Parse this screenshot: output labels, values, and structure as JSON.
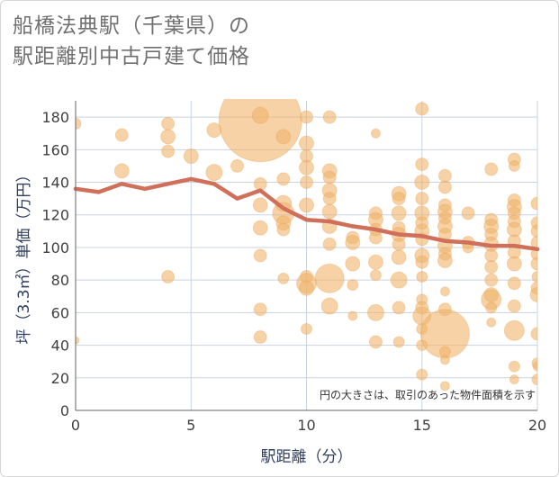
{
  "chart_data": {
    "type": "scatter",
    "title_lines": [
      "船橋法典駅（千葉県）の",
      "駅距離別中古戸建て価格"
    ],
    "xlabel": "駅距離（分）",
    "ylabel": "坪（3.3㎡）単価（万円）",
    "xlim": [
      0,
      20
    ],
    "ylim": [
      0,
      190
    ],
    "xticks": [
      0,
      5,
      10,
      15,
      20
    ],
    "yticks": [
      0,
      20,
      40,
      60,
      80,
      100,
      120,
      140,
      160,
      180
    ],
    "grid": true,
    "note": "円の大きさは、取引のあった物件面積を示す",
    "colors": {
      "bubble": "#f0b46a",
      "line": "#d0705a",
      "grid": "#c9d3e2",
      "axis": "#666666"
    },
    "trend_line": {
      "x": [
        0,
        1,
        2,
        3,
        4,
        5,
        6,
        7,
        8,
        9,
        10,
        11,
        12,
        13,
        14,
        15,
        16,
        17,
        18,
        19,
        20
      ],
      "y": [
        136,
        134,
        139,
        136,
        139,
        142,
        139,
        130,
        135,
        124,
        117,
        116,
        113,
        111,
        108,
        107,
        104,
        103,
        101,
        101,
        99
      ]
    },
    "bubbles": [
      {
        "x": 0,
        "y": 176,
        "s": 6
      },
      {
        "x": 0,
        "y": 43,
        "s": 4
      },
      {
        "x": 2,
        "y": 169,
        "s": 7
      },
      {
        "x": 2,
        "y": 147,
        "s": 8
      },
      {
        "x": 4,
        "y": 176,
        "s": 7
      },
      {
        "x": 4,
        "y": 168,
        "s": 8
      },
      {
        "x": 4,
        "y": 159,
        "s": 7
      },
      {
        "x": 4,
        "y": 82,
        "s": 7
      },
      {
        "x": 5,
        "y": 156,
        "s": 8
      },
      {
        "x": 6,
        "y": 172,
        "s": 8
      },
      {
        "x": 6,
        "y": 146,
        "s": 9
      },
      {
        "x": 7,
        "y": 150,
        "s": 7
      },
      {
        "x": 8,
        "y": 178,
        "s": 46
      },
      {
        "x": 8,
        "y": 181,
        "s": 9
      },
      {
        "x": 8,
        "y": 139,
        "s": 7
      },
      {
        "x": 8,
        "y": 126,
        "s": 8
      },
      {
        "x": 8,
        "y": 112,
        "s": 8
      },
      {
        "x": 8,
        "y": 95,
        "s": 7
      },
      {
        "x": 8,
        "y": 62,
        "s": 7
      },
      {
        "x": 8,
        "y": 45,
        "s": 7
      },
      {
        "x": 9,
        "y": 168,
        "s": 8
      },
      {
        "x": 9,
        "y": 142,
        "s": 7
      },
      {
        "x": 9,
        "y": 127,
        "s": 9
      },
      {
        "x": 9,
        "y": 121,
        "s": 12
      },
      {
        "x": 9,
        "y": 115,
        "s": 8
      },
      {
        "x": 9,
        "y": 111,
        "s": 7
      },
      {
        "x": 9,
        "y": 81,
        "s": 6
      },
      {
        "x": 10,
        "y": 180,
        "s": 7
      },
      {
        "x": 10,
        "y": 164,
        "s": 8
      },
      {
        "x": 10,
        "y": 156,
        "s": 7
      },
      {
        "x": 10,
        "y": 149,
        "s": 8
      },
      {
        "x": 10,
        "y": 140,
        "s": 7
      },
      {
        "x": 10,
        "y": 126,
        "s": 8
      },
      {
        "x": 10,
        "y": 82,
        "s": 7
      },
      {
        "x": 10,
        "y": 78,
        "s": 11
      },
      {
        "x": 10,
        "y": 75,
        "s": 8
      },
      {
        "x": 10,
        "y": 50,
        "s": 6
      },
      {
        "x": 11,
        "y": 180,
        "s": 7
      },
      {
        "x": 11,
        "y": 147,
        "s": 8
      },
      {
        "x": 11,
        "y": 143,
        "s": 7
      },
      {
        "x": 11,
        "y": 135,
        "s": 8
      },
      {
        "x": 11,
        "y": 130,
        "s": 7
      },
      {
        "x": 11,
        "y": 122,
        "s": 8
      },
      {
        "x": 11,
        "y": 113,
        "s": 8
      },
      {
        "x": 11,
        "y": 102,
        "s": 7
      },
      {
        "x": 11,
        "y": 81,
        "s": 16
      },
      {
        "x": 11,
        "y": 64,
        "s": 9
      },
      {
        "x": 12,
        "y": 106,
        "s": 7
      },
      {
        "x": 12,
        "y": 103,
        "s": 8
      },
      {
        "x": 12,
        "y": 90,
        "s": 8
      },
      {
        "x": 12,
        "y": 77,
        "s": 6
      },
      {
        "x": 12,
        "y": 58,
        "s": 5
      },
      {
        "x": 13,
        "y": 170,
        "s": 5
      },
      {
        "x": 13,
        "y": 121,
        "s": 7
      },
      {
        "x": 13,
        "y": 117,
        "s": 8
      },
      {
        "x": 13,
        "y": 111,
        "s": 7
      },
      {
        "x": 13,
        "y": 106,
        "s": 7
      },
      {
        "x": 13,
        "y": 91,
        "s": 8
      },
      {
        "x": 13,
        "y": 83,
        "s": 6
      },
      {
        "x": 13,
        "y": 60,
        "s": 9
      },
      {
        "x": 13,
        "y": 42,
        "s": 7
      },
      {
        "x": 14,
        "y": 133,
        "s": 8
      },
      {
        "x": 14,
        "y": 130,
        "s": 7
      },
      {
        "x": 14,
        "y": 121,
        "s": 8
      },
      {
        "x": 14,
        "y": 112,
        "s": 7
      },
      {
        "x": 14,
        "y": 108,
        "s": 8
      },
      {
        "x": 14,
        "y": 102,
        "s": 7
      },
      {
        "x": 14,
        "y": 94,
        "s": 8
      },
      {
        "x": 14,
        "y": 80,
        "s": 9
      },
      {
        "x": 14,
        "y": 63,
        "s": 7
      },
      {
        "x": 14,
        "y": 42,
        "s": 6
      },
      {
        "x": 15,
        "y": 185,
        "s": 7
      },
      {
        "x": 15,
        "y": 151,
        "s": 7
      },
      {
        "x": 15,
        "y": 140,
        "s": 8
      },
      {
        "x": 15,
        "y": 130,
        "s": 7
      },
      {
        "x": 15,
        "y": 121,
        "s": 8
      },
      {
        "x": 15,
        "y": 115,
        "s": 7
      },
      {
        "x": 15,
        "y": 110,
        "s": 8
      },
      {
        "x": 15,
        "y": 105,
        "s": 7
      },
      {
        "x": 15,
        "y": 95,
        "s": 8
      },
      {
        "x": 15,
        "y": 91,
        "s": 7
      },
      {
        "x": 15,
        "y": 82,
        "s": 6
      },
      {
        "x": 15,
        "y": 68,
        "s": 6
      },
      {
        "x": 15,
        "y": 63,
        "s": 7
      },
      {
        "x": 15,
        "y": 58,
        "s": 10
      },
      {
        "x": 15,
        "y": 50,
        "s": 6
      },
      {
        "x": 15,
        "y": 40,
        "s": 6
      },
      {
        "x": 15,
        "y": 22,
        "s": 6
      },
      {
        "x": 16,
        "y": 144,
        "s": 7
      },
      {
        "x": 16,
        "y": 137,
        "s": 7
      },
      {
        "x": 16,
        "y": 126,
        "s": 7
      },
      {
        "x": 16,
        "y": 122,
        "s": 8
      },
      {
        "x": 16,
        "y": 118,
        "s": 7
      },
      {
        "x": 16,
        "y": 113,
        "s": 8
      },
      {
        "x": 16,
        "y": 108,
        "s": 7
      },
      {
        "x": 16,
        "y": 101,
        "s": 8
      },
      {
        "x": 16,
        "y": 96,
        "s": 7
      },
      {
        "x": 16,
        "y": 92,
        "s": 8
      },
      {
        "x": 16,
        "y": 73,
        "s": 5
      },
      {
        "x": 16,
        "y": 62,
        "s": 7
      },
      {
        "x": 16,
        "y": 47,
        "s": 27
      },
      {
        "x": 16,
        "y": 36,
        "s": 6
      },
      {
        "x": 16,
        "y": 31,
        "s": 5
      },
      {
        "x": 16,
        "y": 15,
        "s": 5
      },
      {
        "x": 17,
        "y": 121,
        "s": 7
      },
      {
        "x": 17,
        "y": 103,
        "s": 7
      },
      {
        "x": 17,
        "y": 100,
        "s": 6
      },
      {
        "x": 18,
        "y": 148,
        "s": 7
      },
      {
        "x": 18,
        "y": 117,
        "s": 7
      },
      {
        "x": 18,
        "y": 113,
        "s": 8
      },
      {
        "x": 18,
        "y": 108,
        "s": 7
      },
      {
        "x": 18,
        "y": 102,
        "s": 8
      },
      {
        "x": 18,
        "y": 95,
        "s": 7
      },
      {
        "x": 18,
        "y": 88,
        "s": 7
      },
      {
        "x": 18,
        "y": 80,
        "s": 7
      },
      {
        "x": 18,
        "y": 71,
        "s": 8
      },
      {
        "x": 18,
        "y": 68,
        "s": 11
      },
      {
        "x": 18,
        "y": 63,
        "s": 6
      },
      {
        "x": 18,
        "y": 54,
        "s": 5
      },
      {
        "x": 19,
        "y": 154,
        "s": 7
      },
      {
        "x": 19,
        "y": 150,
        "s": 6
      },
      {
        "x": 19,
        "y": 129,
        "s": 7
      },
      {
        "x": 19,
        "y": 125,
        "s": 8
      },
      {
        "x": 19,
        "y": 121,
        "s": 7
      },
      {
        "x": 19,
        "y": 116,
        "s": 7
      },
      {
        "x": 19,
        "y": 111,
        "s": 8
      },
      {
        "x": 19,
        "y": 104,
        "s": 7
      },
      {
        "x": 19,
        "y": 97,
        "s": 7
      },
      {
        "x": 19,
        "y": 90,
        "s": 8
      },
      {
        "x": 19,
        "y": 78,
        "s": 7
      },
      {
        "x": 19,
        "y": 64,
        "s": 7
      },
      {
        "x": 19,
        "y": 49,
        "s": 11
      },
      {
        "x": 19,
        "y": 27,
        "s": 6
      },
      {
        "x": 19,
        "y": 19,
        "s": 5
      },
      {
        "x": 20,
        "y": 127,
        "s": 7
      },
      {
        "x": 20,
        "y": 115,
        "s": 7
      },
      {
        "x": 20,
        "y": 110,
        "s": 7
      },
      {
        "x": 20,
        "y": 103,
        "s": 7
      },
      {
        "x": 20,
        "y": 96,
        "s": 7
      },
      {
        "x": 20,
        "y": 90,
        "s": 7
      },
      {
        "x": 20,
        "y": 82,
        "s": 6
      },
      {
        "x": 20,
        "y": 75,
        "s": 7
      },
      {
        "x": 20,
        "y": 71,
        "s": 8
      },
      {
        "x": 20,
        "y": 47,
        "s": 7
      },
      {
        "x": 20,
        "y": 29,
        "s": 6
      },
      {
        "x": 20,
        "y": 27,
        "s": 5
      },
      {
        "x": 20,
        "y": 19,
        "s": 6
      }
    ]
  }
}
